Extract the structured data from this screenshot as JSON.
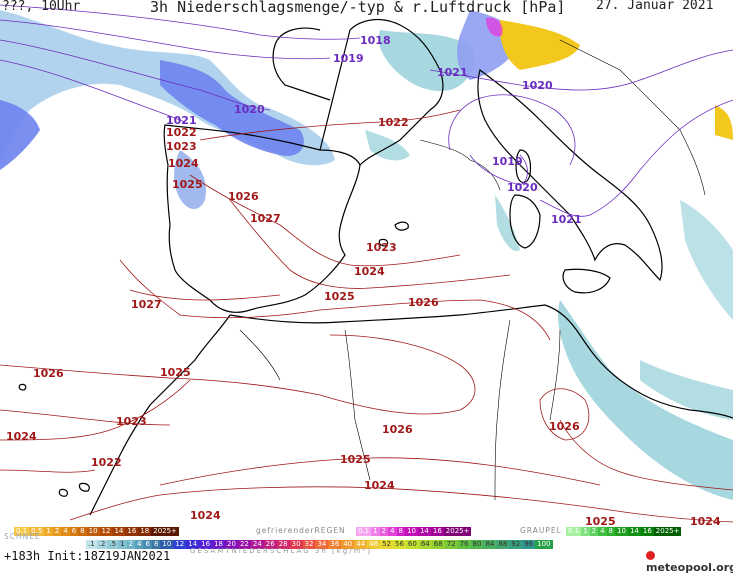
{
  "header": {
    "left": "???, 10Uhr",
    "title": "3h Niederschlagsmenge/-typ & r.Luftdruck [hPa]",
    "date": "27. Januar 2021"
  },
  "isobar_labels": {
    "purple": [
      "1018",
      "1019",
      "1020",
      "1021",
      "1021",
      "1020",
      "1019",
      "1020",
      "1021"
    ],
    "red": [
      "1022",
      "1023",
      "1024",
      "1025",
      "1026",
      "1027",
      "1027",
      "1022",
      "1023",
      "1024",
      "1025",
      "1026",
      "1026",
      "1025",
      "1024",
      "1023",
      "1022",
      "1026",
      "1024",
      "1025",
      "1024",
      "1026",
      "1025",
      "1024",
      "1025",
      "1024"
    ]
  },
  "legend": {
    "rain_scale": [
      "0.1",
      "0.5",
      "1",
      "2",
      "4",
      "6",
      "8",
      "10",
      "12",
      "14",
      "16",
      "18",
      "2025+"
    ],
    "freezing_rain_label": "gefrierenderREGEN",
    "freezing_rain_scale": [
      "0.1",
      "1",
      "2",
      "4",
      "8",
      "10",
      "14",
      "16",
      "2025+"
    ],
    "graupel_label": "GRAUPEL",
    "graupel_scale": [
      "0.1",
      "1",
      "2",
      "4",
      "8",
      "10",
      "14",
      "16",
      "2025+"
    ],
    "snow_label": "SCHNEE",
    "snow_scale": [
      ".1",
      ".2",
      ".5",
      "1",
      "2",
      "4",
      "6",
      "8",
      "10",
      "12",
      "14",
      "16",
      "18",
      "20",
      "22",
      "24",
      "26",
      "28",
      "30",
      "32",
      "34",
      "36",
      "40",
      "44",
      "48",
      "52",
      "56",
      "60",
      "64",
      "68",
      "72",
      "76",
      "80",
      "84",
      "88",
      "92",
      "96",
      "100"
    ],
    "total_label": "GESAMTNIEDERSCHLAG 3h [kg/m²]"
  },
  "footer": {
    "run": "+183h Init:18Z19JAN2021",
    "logo": "meteopool.org"
  },
  "colors": {
    "isobar_high": "#a01818",
    "isobar_low": "#6a2cc0",
    "rain_blue": "#5b6cf0",
    "snow_cyan": "#9fd4dc",
    "sleet_yellow": "#f2c81c",
    "coast": "#000000"
  }
}
